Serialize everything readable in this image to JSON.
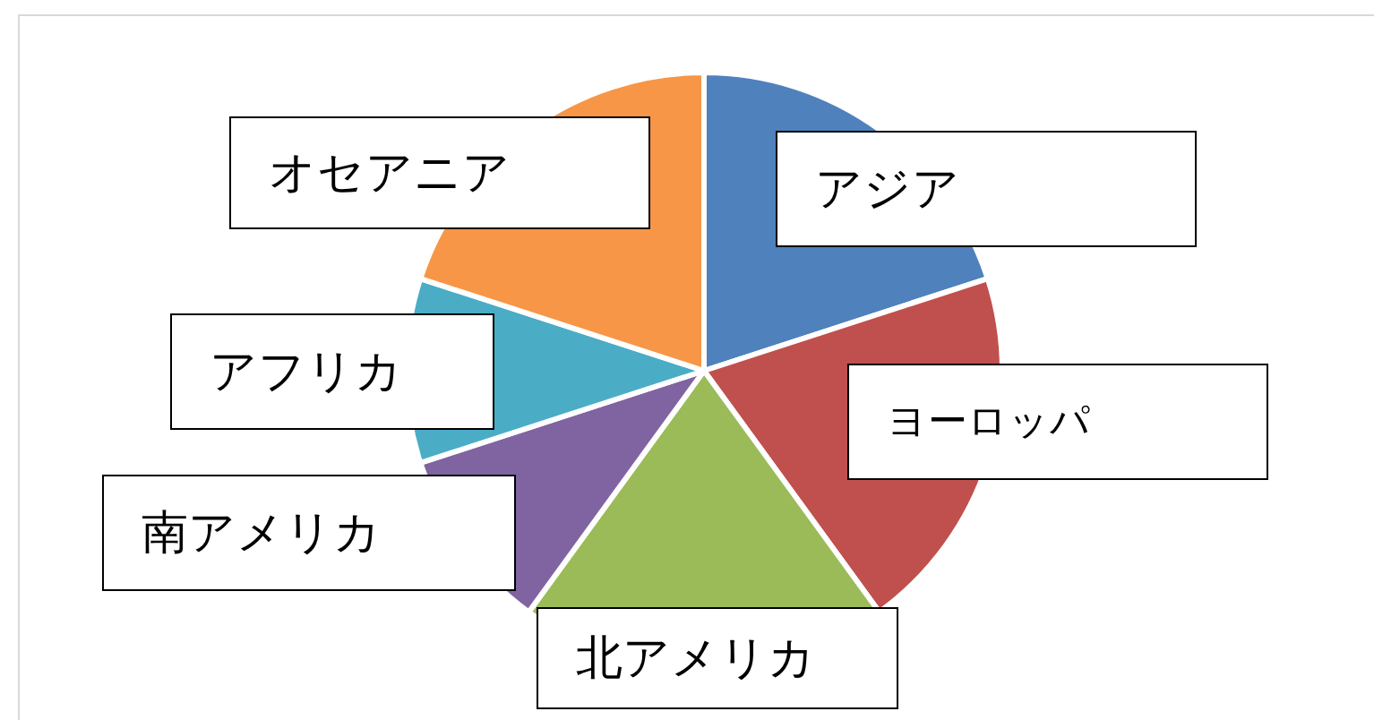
{
  "chart_data": {
    "type": "pie",
    "categories": [
      "アジア",
      "ヨーロッパ",
      "北アメリカ",
      "南アメリカ",
      "アフリカ",
      "オセアニア"
    ],
    "values": [
      20,
      20,
      20,
      10,
      10,
      20
    ],
    "colors": [
      "#4f81bd",
      "#c0504d",
      "#9bbb59",
      "#8064a2",
      "#4bacc6",
      "#f79646"
    ]
  }
}
